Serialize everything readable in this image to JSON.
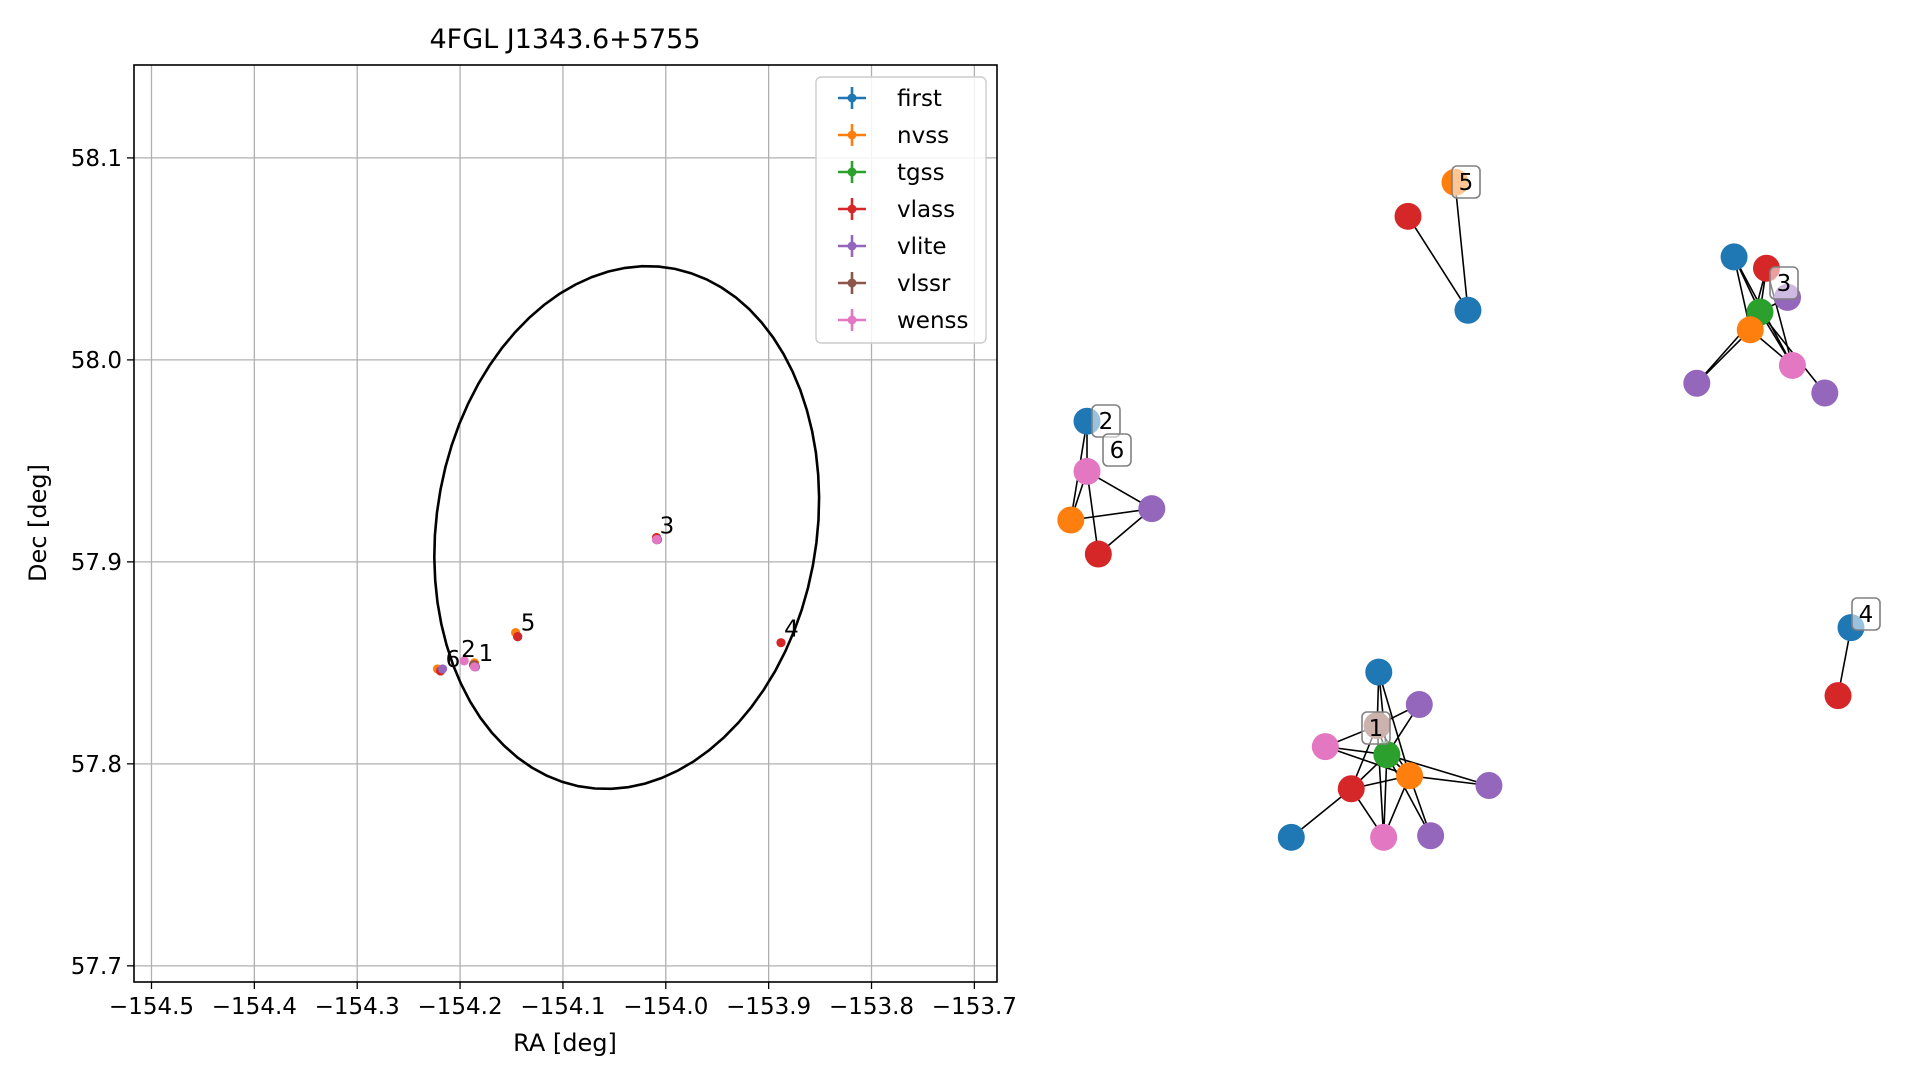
{
  "chart_data": [
    {
      "type": "scatter",
      "title": "4FGL J1343.6+5755",
      "xlabel": "RA [deg]",
      "ylabel": "Dec [deg]",
      "xlim": [
        -154.517,
        -153.678
      ],
      "ylim": [
        57.692,
        58.146
      ],
      "xticks": [
        -154.5,
        -154.4,
        -154.3,
        -154.2,
        -154.1,
        -154.0,
        -153.9,
        -153.8,
        -153.7
      ],
      "xtick_labels": [
        "−154.5",
        "−154.4",
        "−154.3",
        "−154.2",
        "−154.1",
        "−154.0",
        "−153.9",
        "−153.8",
        "−153.7"
      ],
      "yticks": [
        57.7,
        57.8,
        57.9,
        58.0,
        58.1
      ],
      "ytick_labels": [
        "57.7",
        "57.8",
        "57.9",
        "58.0",
        "58.1"
      ],
      "grid": true,
      "legend_position": "top-right",
      "series": [
        {
          "name": "first",
          "color": "#1f77b4",
          "points": [
            {
              "x": -154.186,
              "y": 57.849
            },
            {
              "x": -154.144,
              "y": 57.863
            }
          ]
        },
        {
          "name": "nvss",
          "color": "#ff7f0e",
          "points": [
            {
              "x": -154.222,
              "y": 57.847
            },
            {
              "x": -154.186,
              "y": 57.85
            },
            {
              "x": -154.146,
              "y": 57.865
            },
            {
              "x": -154.009,
              "y": 57.912
            }
          ]
        },
        {
          "name": "tgss",
          "color": "#2ca02c",
          "points": [
            {
              "x": -154.186,
              "y": 57.849
            },
            {
              "x": -154.009,
              "y": 57.911
            }
          ]
        },
        {
          "name": "vlass",
          "color": "#d62728",
          "points": [
            {
              "x": -154.186,
              "y": 57.849
            },
            {
              "x": -154.144,
              "y": 57.863
            },
            {
              "x": -154.009,
              "y": 57.912
            },
            {
              "x": -153.888,
              "y": 57.86
            },
            {
              "x": -154.219,
              "y": 57.846
            }
          ]
        },
        {
          "name": "vlite",
          "color": "#9467bd",
          "points": [
            {
              "x": -154.185,
              "y": 57.848
            },
            {
              "x": -154.008,
              "y": 57.911
            },
            {
              "x": -154.217,
              "y": 57.847
            }
          ]
        },
        {
          "name": "vlssr",
          "color": "#8c564b",
          "points": [
            {
              "x": -154.187,
              "y": 57.849
            }
          ]
        },
        {
          "name": "wenss",
          "color": "#e377c2",
          "points": [
            {
              "x": -154.186,
              "y": 57.848
            },
            {
              "x": -154.009,
              "y": 57.911
            },
            {
              "x": -154.196,
              "y": 57.851
            }
          ]
        }
      ],
      "ellipse": {
        "center": [
          -154.038,
          57.917
        ],
        "semi_major_ra": 0.188,
        "semi_minor_dec": 0.128,
        "angle_deg": 8
      },
      "annotations": [
        {
          "text": "1",
          "x": -154.182,
          "y": 57.851
        },
        {
          "text": "2",
          "x": -154.199,
          "y": 57.853
        },
        {
          "text": "3",
          "x": -154.006,
          "y": 57.914
        },
        {
          "text": "4",
          "x": -153.885,
          "y": 57.863
        },
        {
          "text": "5",
          "x": -154.141,
          "y": 57.866
        },
        {
          "text": "6",
          "x": -154.214,
          "y": 57.848
        }
      ]
    },
    {
      "type": "network",
      "colors": {
        "first": "#1f77b4",
        "nvss": "#ff7f0e",
        "tgss": "#2ca02c",
        "vlass": "#d62728",
        "vlite": "#9467bd",
        "vlssr": "#8c564b",
        "wenss": "#e377c2"
      },
      "clusters": [
        {
          "label": "1",
          "nodes": [
            {
              "id": "a",
              "survey": "first",
              "x": 0.19,
              "y": 0.95
            },
            {
              "id": "b",
              "survey": "vlite",
              "x": 0.44,
              "y": 0.75
            },
            {
              "id": "c",
              "survey": "vlssr",
              "x": 0.18,
              "y": 0.62
            },
            {
              "id": "d",
              "survey": "wenss",
              "x": -0.14,
              "y": 0.49
            },
            {
              "id": "e",
              "survey": "tgss",
              "x": 0.24,
              "y": 0.44
            },
            {
              "id": "f",
              "survey": "nvss",
              "x": 0.38,
              "y": 0.31
            },
            {
              "id": "g",
              "survey": "vlass",
              "x": 0.02,
              "y": 0.23
            },
            {
              "id": "h",
              "survey": "vlite",
              "x": 0.87,
              "y": 0.25
            },
            {
              "id": "i",
              "survey": "first",
              "x": -0.35,
              "y": -0.07
            },
            {
              "id": "j",
              "survey": "wenss",
              "x": 0.22,
              "y": -0.07
            },
            {
              "id": "k",
              "survey": "vlite",
              "x": 0.51,
              "y": -0.06
            }
          ],
          "edges": [
            [
              "a",
              "c"
            ],
            [
              "a",
              "e"
            ],
            [
              "a",
              "f"
            ],
            [
              "b",
              "c"
            ],
            [
              "b",
              "e"
            ],
            [
              "c",
              "d"
            ],
            [
              "c",
              "e"
            ],
            [
              "c",
              "f"
            ],
            [
              "c",
              "g"
            ],
            [
              "c",
              "j"
            ],
            [
              "d",
              "e"
            ],
            [
              "d",
              "f"
            ],
            [
              "e",
              "f"
            ],
            [
              "e",
              "g"
            ],
            [
              "e",
              "h"
            ],
            [
              "e",
              "j"
            ],
            [
              "e",
              "k"
            ],
            [
              "f",
              "g"
            ],
            [
              "f",
              "h"
            ],
            [
              "f",
              "j"
            ],
            [
              "f",
              "k"
            ],
            [
              "g",
              "i"
            ],
            [
              "g",
              "j"
            ]
          ]
        },
        {
          "label": "2",
          "nodes": [
            {
              "id": "a",
              "survey": "first",
              "x": 0.0,
              "y": 0.4
            },
            {
              "id": "b",
              "survey": "wenss",
              "x": 0.0,
              "y": 0.09
            },
            {
              "id": "c",
              "survey": "nvss",
              "x": -0.1,
              "y": -0.21
            },
            {
              "id": "d",
              "survey": "vlite",
              "x": 0.4,
              "y": -0.14
            },
            {
              "id": "e",
              "survey": "vlass",
              "x": 0.07,
              "y": -0.42
            }
          ],
          "edges": [
            [
              "a",
              "b"
            ],
            [
              "a",
              "c"
            ],
            [
              "b",
              "c"
            ],
            [
              "b",
              "d"
            ],
            [
              "b",
              "e"
            ],
            [
              "c",
              "d"
            ],
            [
              "d",
              "e"
            ]
          ]
        },
        {
          "label": "3",
          "nodes": [
            {
              "id": "a",
              "survey": "first",
              "x": -0.16,
              "y": 0.55
            },
            {
              "id": "b",
              "survey": "vlass",
              "x": 0.04,
              "y": 0.48
            },
            {
              "id": "c",
              "survey": "vlite",
              "x": 0.17,
              "y": 0.3
            },
            {
              "id": "d",
              "survey": "tgss",
              "x": 0.0,
              "y": 0.21
            },
            {
              "id": "e",
              "survey": "nvss",
              "x": -0.06,
              "y": 0.1
            },
            {
              "id": "f",
              "survey": "vlite",
              "x": -0.39,
              "y": -0.23
            },
            {
              "id": "g",
              "survey": "wenss",
              "x": 0.2,
              "y": -0.12
            },
            {
              "id": "h",
              "survey": "vlite",
              "x": 0.4,
              "y": -0.29
            }
          ],
          "edges": [
            [
              "a",
              "d"
            ],
            [
              "a",
              "e"
            ],
            [
              "a",
              "g"
            ],
            [
              "b",
              "d"
            ],
            [
              "b",
              "e"
            ],
            [
              "b",
              "g"
            ],
            [
              "c",
              "d"
            ],
            [
              "d",
              "e"
            ],
            [
              "d",
              "f"
            ],
            [
              "d",
              "g"
            ],
            [
              "d",
              "h"
            ],
            [
              "e",
              "f"
            ],
            [
              "e",
              "g"
            ]
          ]
        },
        {
          "label": "4",
          "nodes": [
            {
              "id": "a",
              "survey": "first",
              "x": 0.0,
              "y": 0.2
            },
            {
              "id": "b",
              "survey": "vlass",
              "x": -0.08,
              "y": -0.22
            }
          ],
          "edges": [
            [
              "a",
              "b"
            ]
          ]
        },
        {
          "label": "5",
          "nodes": [
            {
              "id": "a",
              "survey": "nvss",
              "x": 0.0,
              "y": 0.35
            },
            {
              "id": "b",
              "survey": "vlass",
              "x": -0.29,
              "y": 0.14
            },
            {
              "id": "c",
              "survey": "first",
              "x": 0.08,
              "y": -0.44
            }
          ],
          "edges": [
            [
              "a",
              "c"
            ],
            [
              "b",
              "c"
            ]
          ]
        },
        {
          "label": "6",
          "nodes": [],
          "edges": []
        }
      ]
    }
  ]
}
